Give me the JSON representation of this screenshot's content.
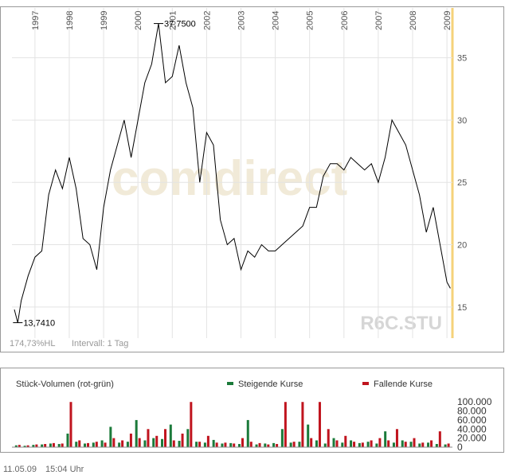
{
  "watermark": "comdirect",
  "symbol": "R6C.STU",
  "info": {
    "range": "174,73%HL",
    "interval": "Intervall: 1 Tag"
  },
  "footer": {
    "date": "11.05.09",
    "time": "15:04 Uhr"
  },
  "chart_data": [
    {
      "type": "line",
      "color": "#000000",
      "x": [
        1996.4,
        1996.5,
        1996.6,
        1996.8,
        1997.0,
        1997.2,
        1997.4,
        1997.6,
        1997.8,
        1998.0,
        1998.2,
        1998.4,
        1998.6,
        1998.8,
        1999.0,
        1999.2,
        1999.4,
        1999.6,
        1999.8,
        2000.0,
        2000.2,
        2000.4,
        2000.6,
        2000.8,
        2001.0,
        2001.2,
        2001.4,
        2001.6,
        2001.8,
        2002.0,
        2002.2,
        2002.4,
        2002.6,
        2002.8,
        2003.0,
        2003.2,
        2003.4,
        2003.6,
        2003.8,
        2004.0,
        2004.2,
        2004.4,
        2004.6,
        2004.8,
        2005.0,
        2005.2,
        2005.4,
        2005.6,
        2005.8,
        2006.0,
        2006.2,
        2006.4,
        2006.6,
        2006.8,
        2007.0,
        2007.2,
        2007.4,
        2007.6,
        2007.8,
        2008.0,
        2008.2,
        2008.4,
        2008.6,
        2008.8,
        2009.0,
        2009.1
      ],
      "values": [
        14.8,
        13.741,
        15.5,
        17.5,
        19,
        19.5,
        24,
        26,
        24.5,
        27,
        24.5,
        20.5,
        20,
        18,
        23,
        26,
        28,
        30,
        27,
        30,
        33,
        34.5,
        37.75,
        33,
        33.5,
        36,
        33,
        31,
        25,
        29,
        28,
        22,
        20,
        20.5,
        18,
        19.5,
        19,
        20,
        19.5,
        19.5,
        20,
        20.5,
        21,
        21.5,
        23,
        23,
        25.5,
        26.5,
        26.5,
        26,
        27,
        26.5,
        26,
        26.5,
        25,
        27,
        30,
        29,
        28,
        26,
        24,
        21,
        23,
        20,
        17,
        16.5
      ],
      "annotations": [
        {
          "x": 2000.6,
          "y": 37.75,
          "text": "37,7500"
        },
        {
          "x": 1996.5,
          "y": 13.741,
          "text": "13,7410"
        }
      ],
      "xlim": [
        1996.33,
        2009.16
      ],
      "xticks": [
        1997,
        1998,
        1999,
        2000,
        2001,
        2002,
        2003,
        2004,
        2005,
        2006,
        2007,
        2008,
        2009
      ],
      "ylim": [
        12.5,
        39
      ],
      "yticks": [
        15,
        20,
        25,
        30,
        35
      ],
      "grid": true
    },
    {
      "type": "bar",
      "title": "Stück-Volumen (rot-grün)",
      "x": [
        1996.5,
        1996.75,
        1997.0,
        1997.25,
        1997.5,
        1997.75,
        1998.0,
        1998.25,
        1998.5,
        1998.75,
        1999.0,
        1999.25,
        1999.5,
        1999.75,
        2000.0,
        2000.25,
        2000.5,
        2000.75,
        2001.0,
        2001.25,
        2001.5,
        2001.75,
        2002.0,
        2002.25,
        2002.5,
        2002.75,
        2003.0,
        2003.25,
        2003.5,
        2003.75,
        2004.0,
        2004.25,
        2004.5,
        2004.75,
        2005.0,
        2005.25,
        2005.5,
        2005.75,
        2006.0,
        2006.25,
        2006.5,
        2006.75,
        2007.0,
        2007.25,
        2007.5,
        2007.75,
        2008.0,
        2008.25,
        2008.5,
        2008.75,
        2009.0
      ],
      "series": [
        {
          "name": "Steigende Kurse",
          "color": "#1b7a3a",
          "values": [
            4000,
            3000,
            5000,
            6000,
            8000,
            7000,
            30000,
            12000,
            8000,
            10000,
            15000,
            45000,
            10000,
            12000,
            60000,
            15000,
            20000,
            18000,
            50000,
            14000,
            40000,
            12000,
            10000,
            16000,
            8000,
            9000,
            7000,
            60000,
            6000,
            8000,
            9000,
            40000,
            10000,
            12000,
            50000,
            15000,
            8000,
            20000,
            10000,
            15000,
            9000,
            12000,
            8000,
            35000,
            10000,
            15000,
            12000,
            8000,
            10000,
            7000,
            6000
          ]
        },
        {
          "name": "Fallende Kurse",
          "color": "#c0141e",
          "values": [
            5000,
            4000,
            6000,
            7000,
            9000,
            8000,
            100000,
            15000,
            9000,
            12000,
            10000,
            20000,
            15000,
            30000,
            20000,
            40000,
            25000,
            40000,
            15000,
            30000,
            100000,
            12000,
            25000,
            10000,
            10000,
            8000,
            20000,
            12000,
            9000,
            6000,
            7000,
            100000,
            12000,
            100000,
            20000,
            100000,
            40000,
            15000,
            25000,
            12000,
            10000,
            15000,
            20000,
            15000,
            40000,
            12000,
            20000,
            10000,
            15000,
            35000,
            8000
          ]
        }
      ],
      "xlim": [
        1996.33,
        2009.16
      ],
      "ylim": [
        0,
        118000
      ],
      "yticks": [
        {
          "value": 0,
          "label": "0"
        },
        {
          "value": 20000,
          "label": "20.000"
        },
        {
          "value": 40000,
          "label": "40.000"
        },
        {
          "value": 60000,
          "label": "60.000"
        },
        {
          "value": 80000,
          "label": "80.000"
        },
        {
          "value": 100000,
          "label": "100.000"
        }
      ],
      "grid": false
    }
  ]
}
